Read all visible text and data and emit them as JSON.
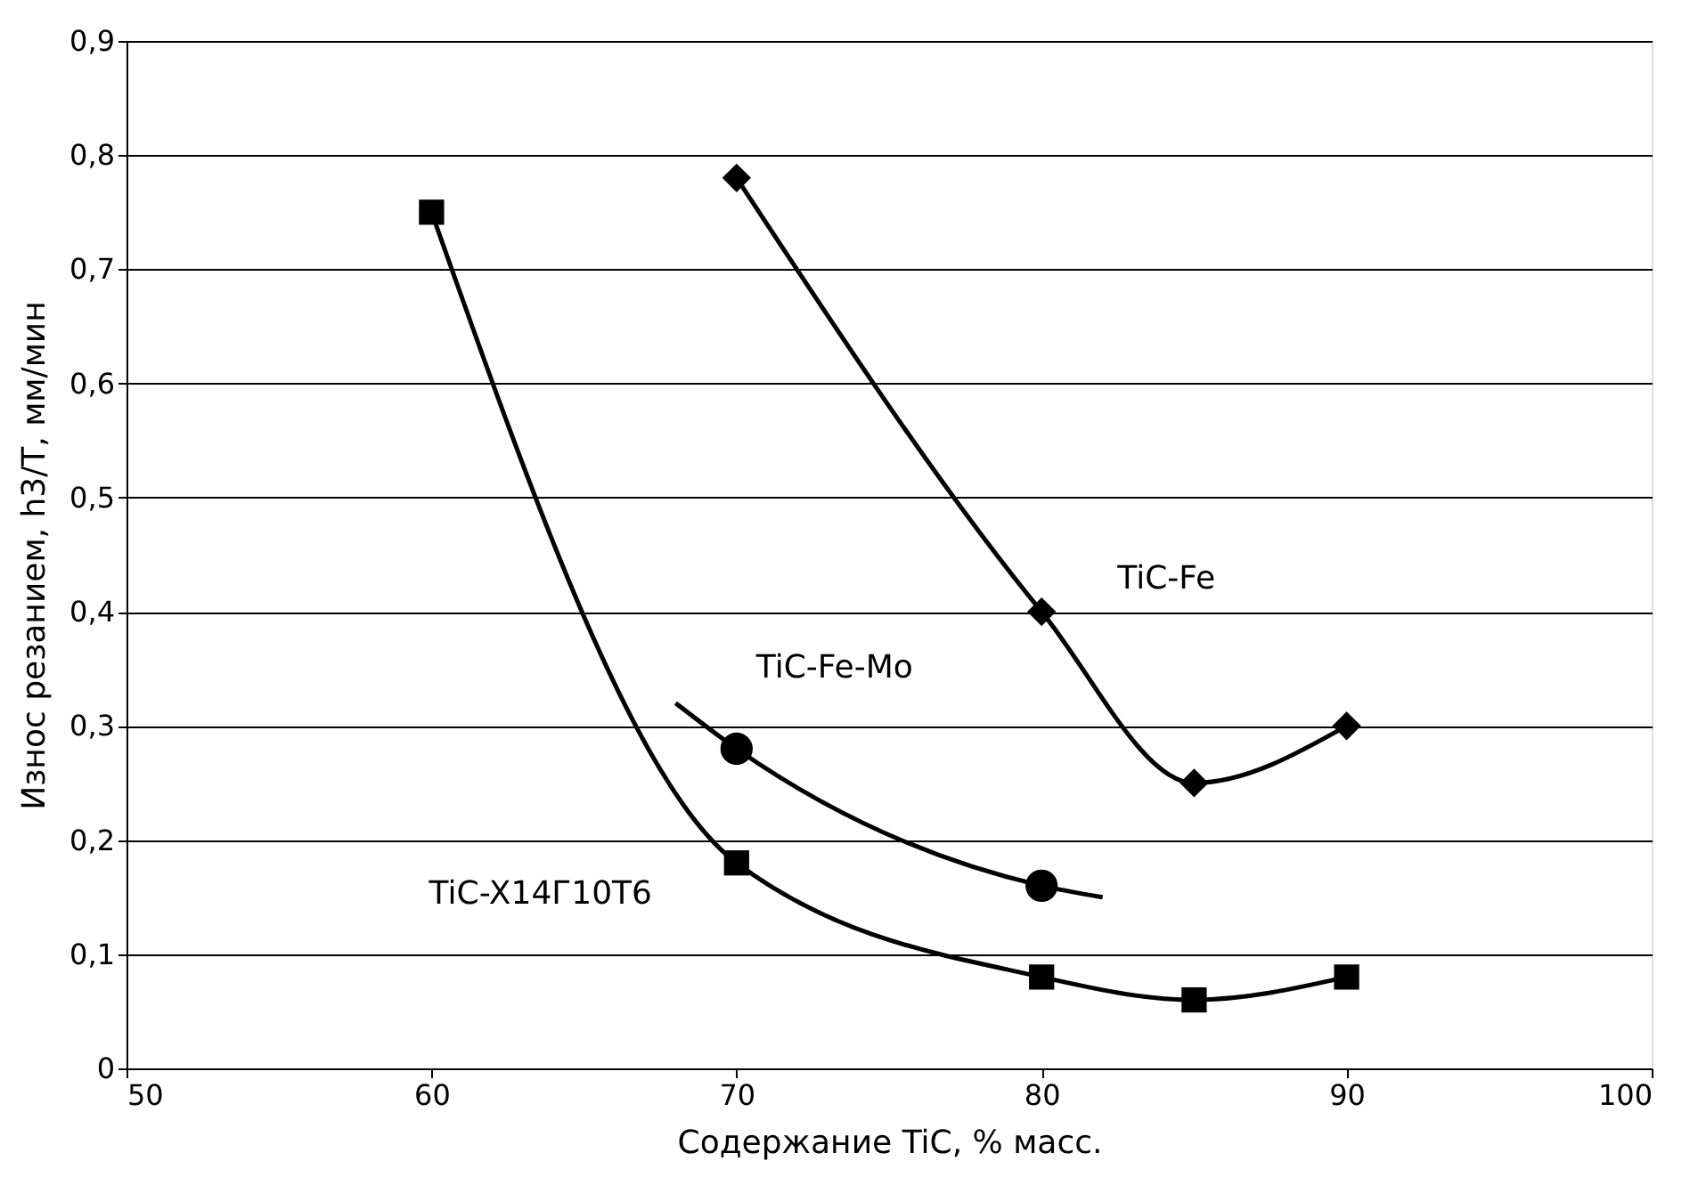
{
  "chart_data": {
    "type": "line",
    "xlabel": "Содержание TiC, % масс.",
    "ylabel": "Износ резанием, h3/T, мм/мин",
    "xlim": [
      50,
      100
    ],
    "xticks": [
      50,
      60,
      70,
      80,
      90,
      100
    ],
    "ylim": [
      0,
      0.9
    ],
    "yticks": [
      {
        "value": 0,
        "label": "0"
      },
      {
        "value": 0.1,
        "label": "0,1"
      },
      {
        "value": 0.2,
        "label": "0,2"
      },
      {
        "value": 0.3,
        "label": "0,3"
      },
      {
        "value": 0.4,
        "label": "0,4"
      },
      {
        "value": 0.5,
        "label": "0,5"
      },
      {
        "value": 0.6,
        "label": "0,6"
      },
      {
        "value": 0.7,
        "label": "0,7"
      },
      {
        "value": 0.8,
        "label": "0,8"
      },
      {
        "value": 0.9,
        "label": "0,9"
      }
    ],
    "grid": "y",
    "series": [
      {
        "name": "TiC-Fe",
        "color": "#000000",
        "marker": "diamond",
        "x": [
          70,
          80,
          85,
          90
        ],
        "values": [
          0.78,
          0.4,
          0.25,
          0.3
        ]
      },
      {
        "type": "line",
        "color": "#000000",
        "marker": "none",
        "x": [
          68,
          70,
          80,
          82
        ],
        "values": [
          0.32,
          0.28,
          0.16,
          0.15
        ]
      },
      {
        "name": "TiC-Fe-Mo",
        "type": "scatter",
        "color": "#000000",
        "marker": "circle",
        "x": [
          70,
          80
        ],
        "values": [
          0.28,
          0.16
        ]
      },
      {
        "name": "TiC-X14Г10Т6",
        "color": "#000000",
        "marker": "square",
        "x": [
          60,
          70,
          80,
          85,
          90
        ],
        "values": [
          0.75,
          0.18,
          0.08,
          0.06,
          0.08
        ]
      }
    ]
  }
}
